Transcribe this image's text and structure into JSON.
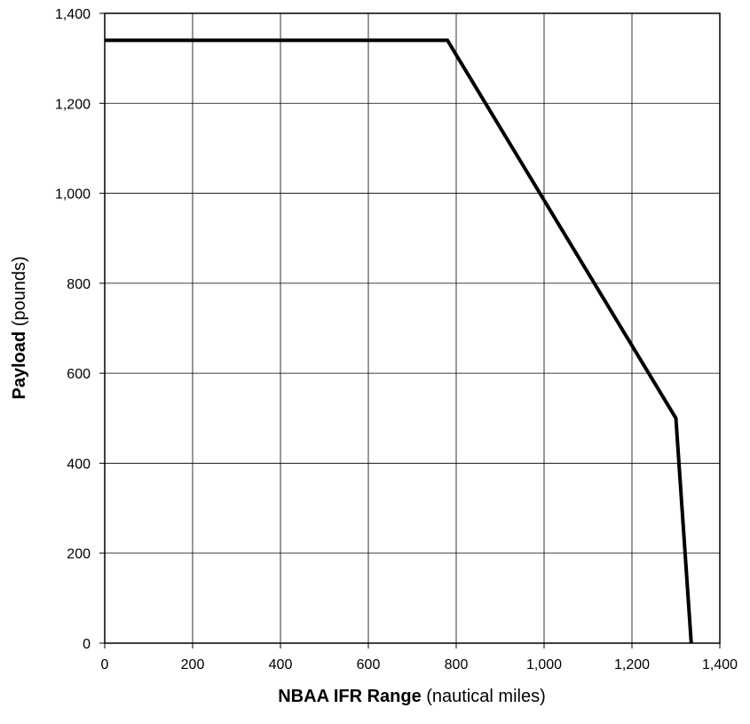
{
  "chart_data": {
    "type": "line",
    "title": "",
    "xlabel": {
      "bold": "NBAA IFR Range",
      "normal": " (nautical miles)"
    },
    "ylabel": {
      "bold": "Payload",
      "normal": " (pounds)"
    },
    "xlim": [
      0,
      1400
    ],
    "ylim": [
      0,
      1400
    ],
    "x_ticks": [
      0,
      200,
      400,
      600,
      800,
      1000,
      1200,
      1400
    ],
    "x_tick_labels": [
      "0",
      "200",
      "400",
      "600",
      "800",
      "1,000",
      "1,200",
      "1,400"
    ],
    "y_ticks": [
      0,
      200,
      400,
      600,
      800,
      1000,
      1200,
      1400
    ],
    "y_tick_labels": [
      "0",
      "200",
      "400",
      "600",
      "800",
      "1,000",
      "1,200",
      "1,400"
    ],
    "grid": true,
    "series": [
      {
        "color": "#000000",
        "points": [
          {
            "x": 0,
            "y": 1340
          },
          {
            "x": 780,
            "y": 1340
          },
          {
            "x": 1300,
            "y": 500
          },
          {
            "x": 1335,
            "y": 0
          }
        ]
      }
    ]
  }
}
